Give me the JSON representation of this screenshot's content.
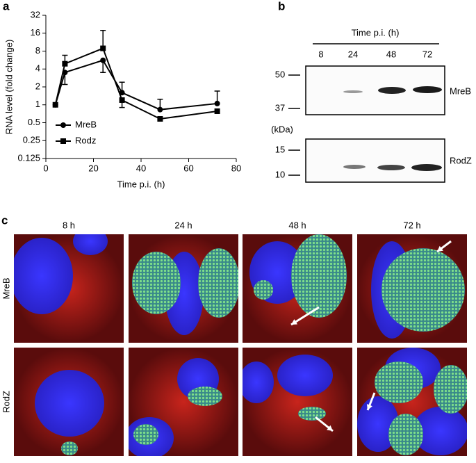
{
  "panel_labels": [
    "a",
    "b",
    "c"
  ],
  "chart_data": {
    "type": "line",
    "ylabel": "RNA level (fold change)",
    "xlabel": "Time p.i. (h)",
    "x": [
      4,
      8,
      24,
      32,
      48,
      72
    ],
    "series": [
      {
        "name": "MreB",
        "color": "#000000",
        "marker": "circle",
        "values": [
          1,
          3.5,
          5.6,
          1.6,
          0.83,
          1.05
        ],
        "error_upper": [
          null,
          null,
          null,
          2.4,
          1.24,
          1.7
        ],
        "error_lower": [
          null,
          2.2,
          3.5,
          null,
          null,
          null
        ]
      },
      {
        "name": "Rodz",
        "color": "#000000",
        "marker": "square",
        "values": [
          1,
          4.9,
          8.9,
          1.2,
          0.58,
          0.78
        ],
        "error_upper": [
          null,
          6.8,
          17.8,
          null,
          null,
          null
        ],
        "error_lower": [
          null,
          null,
          null,
          0.9,
          null,
          null
        ]
      }
    ],
    "log_y": true,
    "xlim": [
      0,
      80
    ],
    "xticks": [
      0,
      20,
      40,
      60,
      80
    ],
    "ylim": [
      0.125,
      32
    ],
    "yticks": [
      0.125,
      0.25,
      0.5,
      1,
      2,
      4,
      8,
      16,
      32
    ],
    "legend": "lower-left"
  },
  "blot": {
    "header": "Time p.i. (h)",
    "lanes": [
      "8",
      "24",
      "48",
      "72"
    ],
    "unit": "(kDa)",
    "markers_top": [
      "50",
      "37"
    ],
    "markers_bottom": [
      "15",
      "10"
    ],
    "bands": [
      "MreB",
      "RodZ"
    ]
  },
  "micrographs": {
    "columns": [
      "8 h",
      "24 h",
      "48 h",
      "72 h"
    ],
    "rows": [
      "MreB",
      "RodZ"
    ]
  }
}
